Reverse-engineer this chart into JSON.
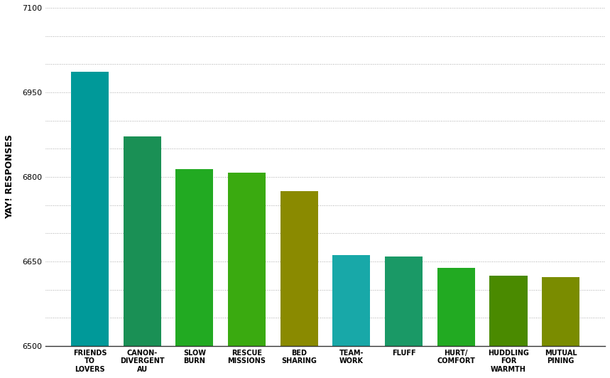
{
  "categories": [
    "FRIENDS\nTO\nLOVERS",
    "CANON-\nDIVERGENT\nAU",
    "SLOW\nBURN",
    "RESCUE\nMISSIONS",
    "BED\nSHARING",
    "TEAM-\nWORK",
    "FLUFF",
    "HURT/\nCOMFORT",
    "HUDDLING\nFOR\nWARMTH",
    "MUTUAL\nPINING"
  ],
  "values": [
    6987,
    6872,
    6814,
    6808,
    6775,
    6661,
    6659,
    6639,
    6625,
    6622
  ],
  "bar_colors": [
    "#009999",
    "#1a9055",
    "#22aa22",
    "#3aaa10",
    "#8a8a00",
    "#18a8a8",
    "#1a9966",
    "#22aa22",
    "#4a8a00",
    "#7a8c00"
  ],
  "ylabel": "YAY! RESPONSES",
  "ylim_min": 6500,
  "ylim_max": 7100,
  "ytick_labeled": [
    6500,
    6650,
    6800,
    6950,
    7100
  ],
  "ytick_all": [
    6500,
    6550,
    6600,
    6650,
    6700,
    6750,
    6800,
    6850,
    6900,
    6950,
    7000,
    7050,
    7100
  ],
  "background_color": "#ffffff",
  "ylabel_fontsize": 9,
  "tick_fontsize": 8,
  "xlabel_fontsize": 7,
  "bar_width": 0.72
}
